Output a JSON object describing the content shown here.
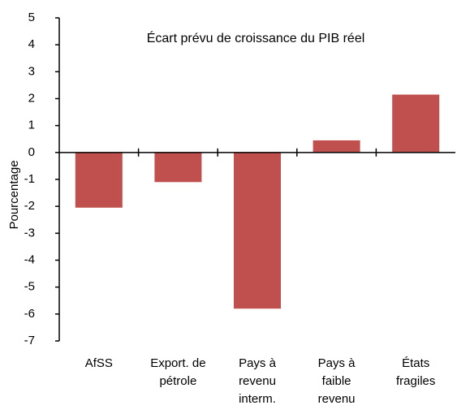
{
  "chart_data": {
    "type": "bar",
    "title": "Écart prévu de croissance du PIB réel",
    "y_label": "Pourcentage",
    "categories": [
      [
        "AfSS"
      ],
      [
        "Export.  de",
        "pétrole"
      ],
      [
        "Pays à",
        "revenu",
        "interm."
      ],
      [
        "Pays à",
        "faible",
        "revenu"
      ],
      [
        "États",
        "fragiles"
      ]
    ],
    "values": [
      -2.05,
      -1.1,
      -5.8,
      0.45,
      2.15
    ],
    "color": "#c0504d",
    "ylim": [
      -7,
      5
    ],
    "yticks": [
      -7,
      -6,
      -5,
      -4,
      -3,
      -2,
      -1,
      0,
      1,
      2,
      3,
      4,
      5
    ]
  }
}
